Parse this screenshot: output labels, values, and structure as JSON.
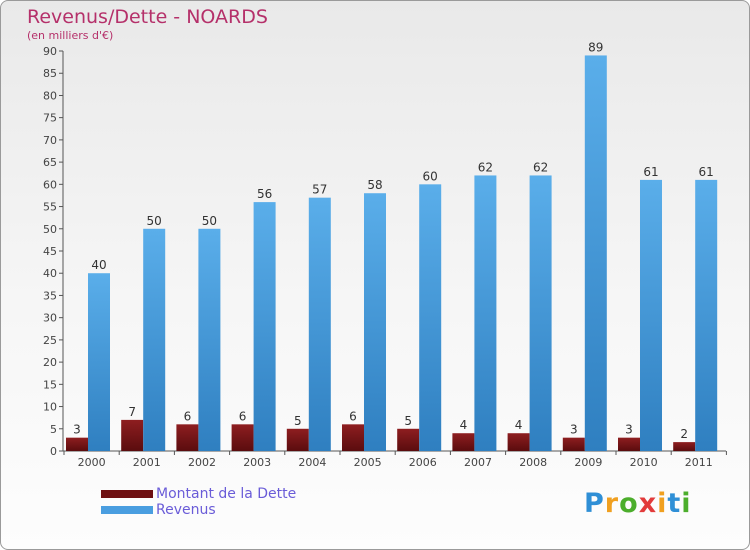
{
  "title": "Revenus/Dette - NOARDS",
  "subtitle": "(en milliers d'€)",
  "logo": {
    "text": "Proxiti",
    "colors": [
      "#2f8fd6",
      "#f0a020",
      "#4cae2c",
      "#e23b3b",
      "#f0a020",
      "#2f8fd6",
      "#4cae2c"
    ]
  },
  "chart_data": {
    "type": "bar",
    "title": "Revenus/Dette - NOARDS",
    "subtitle": "(en milliers d'€)",
    "categories": [
      "2000",
      "2001",
      "2002",
      "2003",
      "2004",
      "2005",
      "2006",
      "2007",
      "2008",
      "2009",
      "2010",
      "2011"
    ],
    "series": [
      {
        "name": "Montant de la Dette",
        "color": "#7a1416",
        "values": [
          3,
          7,
          6,
          6,
          5,
          6,
          5,
          4,
          4,
          3,
          3,
          2
        ]
      },
      {
        "name": "Revenus",
        "color": "#4a9ee0",
        "values": [
          40,
          50,
          50,
          56,
          57,
          58,
          60,
          62,
          62,
          89,
          61,
          61
        ]
      }
    ],
    "ylim": [
      0,
      90
    ],
    "yticks": [
      0,
      5,
      10,
      15,
      20,
      25,
      30,
      35,
      40,
      45,
      50,
      55,
      60,
      65,
      70,
      75,
      80,
      85,
      90
    ],
    "grid": false,
    "legend_position": "bottom-left"
  }
}
